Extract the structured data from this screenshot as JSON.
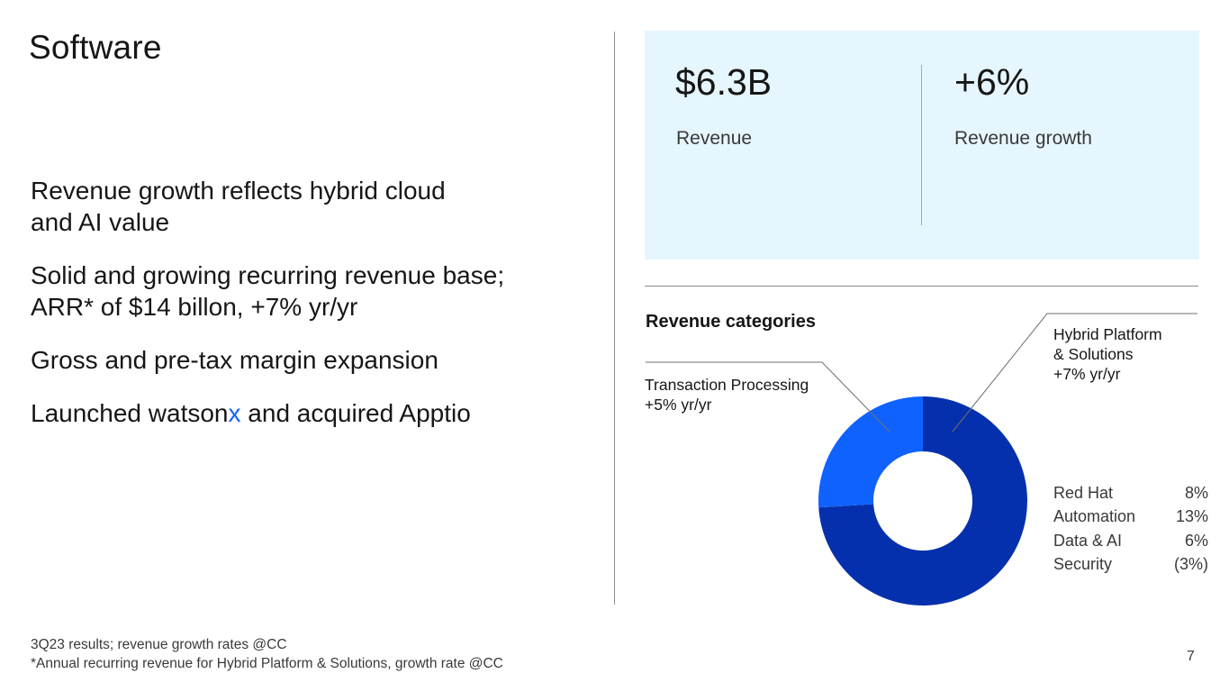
{
  "slide": {
    "title": "Software",
    "page_number": "7"
  },
  "bullets": [
    {
      "text": "Revenue growth reflects hybrid cloud and AI value"
    },
    {
      "text": "Solid and growing recurring revenue base; ARR* of $14 billon, +7% yr/yr"
    },
    {
      "text": "Gross and pre-tax margin expansion"
    },
    {
      "text_before": "Launched watson",
      "text_accent": "x",
      "text_after": " and acquired Apptio"
    }
  ],
  "kpis": [
    {
      "value": "$6.3B",
      "label": "Revenue"
    },
    {
      "value": "+6%",
      "label": "Revenue growth"
    }
  ],
  "revenue_categories": {
    "heading": "Revenue categories",
    "segments": [
      {
        "line1": "Hybrid Platform",
        "line2": "& Solutions",
        "line3": "+7% yr/yr",
        "share": 0.74,
        "color": "#0530ad"
      },
      {
        "line1": "Transaction Processing",
        "line2": "+5% yr/yr",
        "share": 0.26,
        "color": "#0f62fe"
      }
    ],
    "sub_breakdown": [
      {
        "name": "Red Hat",
        "value": "8%"
      },
      {
        "name": "Automation",
        "value": "13%"
      },
      {
        "name": "Data & AI",
        "value": "6%"
      },
      {
        "name": "Security",
        "value": "(3%)"
      }
    ]
  },
  "footnotes": [
    "3Q23 results; revenue growth rates @CC",
    "*Annual recurring revenue for Hybrid Platform & Solutions, growth rate @CC"
  ],
  "colors": {
    "accent": "#0f62fe",
    "dark_blue": "#0530ad",
    "kpi_background": "#e5f6ff"
  }
}
